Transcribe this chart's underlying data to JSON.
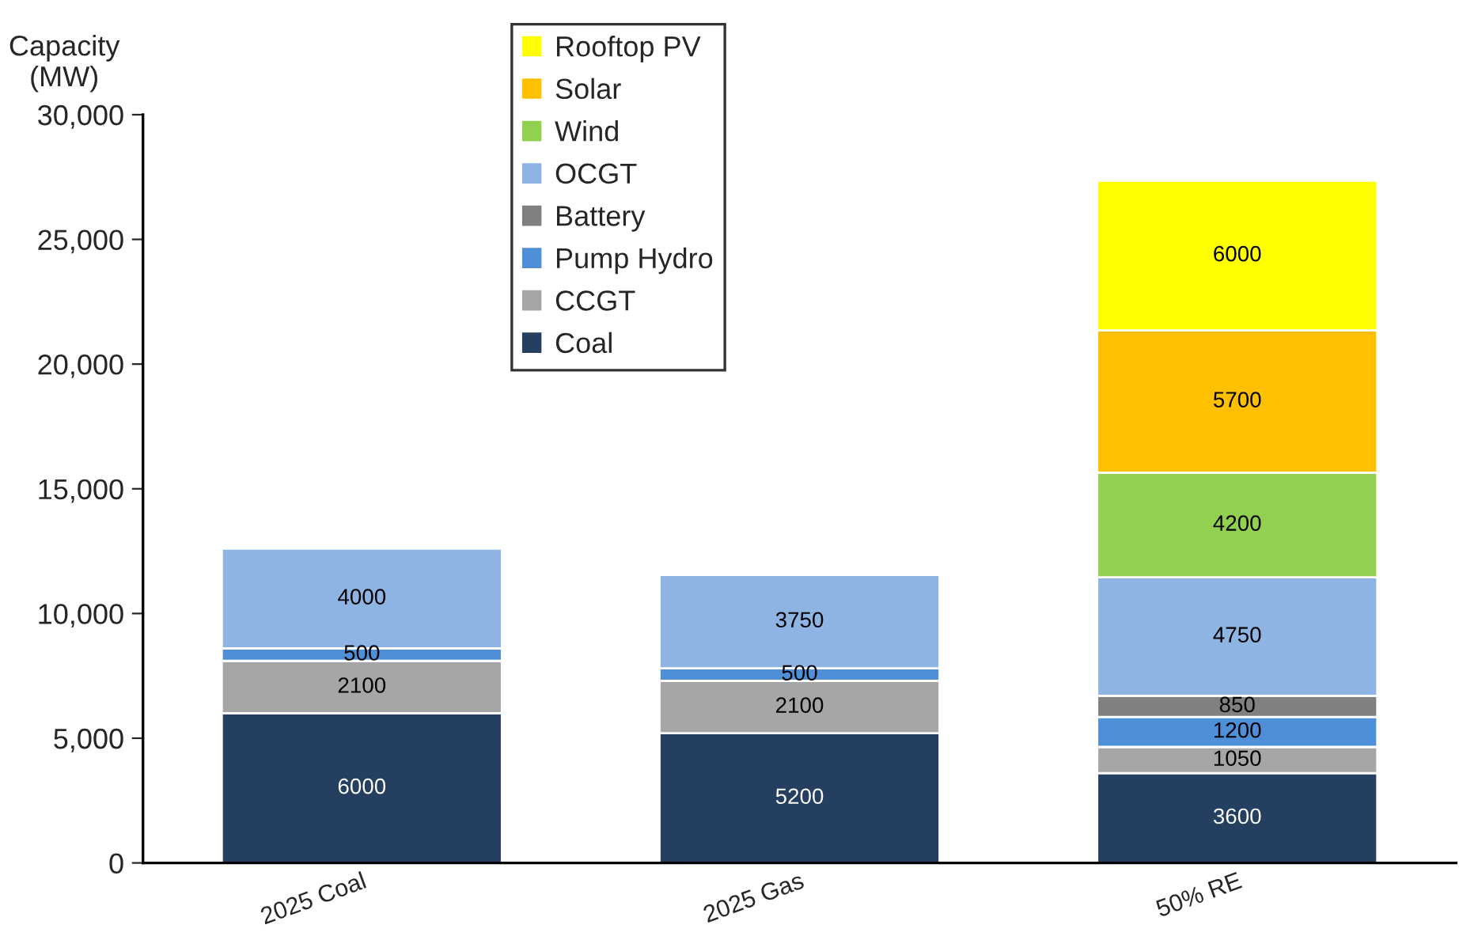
{
  "chart_data": {
    "type": "bar",
    "ylabel": "Capacity\n(MW)",
    "categories": [
      "2025 Coal",
      "2025 Gas",
      "50% RE"
    ],
    "stacked": true,
    "data_labels": true,
    "grid": false,
    "legend": "top left",
    "ylim": [
      0,
      30000
    ],
    "yticks": [
      {
        "value": 0,
        "label": "0"
      },
      {
        "value": 5000,
        "label": "5,000"
      },
      {
        "value": 10000,
        "label": "10,000"
      },
      {
        "value": 15000,
        "label": "15,000"
      },
      {
        "value": 20000,
        "label": "20,000"
      },
      {
        "value": 25000,
        "label": "25,000"
      },
      {
        "value": 30000,
        "label": "30,000"
      }
    ],
    "series": [
      {
        "name": "Coal",
        "color": "#243f60",
        "values": [
          6000,
          5200,
          3600
        ]
      },
      {
        "name": "CCGT",
        "color": "#a6a6a6",
        "values": [
          2100,
          2100,
          1050
        ]
      },
      {
        "name": "Pump Hydro",
        "color": "#4f8fd8",
        "values": [
          500,
          500,
          1200
        ]
      },
      {
        "name": "Battery",
        "color": "#808080",
        "values": [
          null,
          null,
          850
        ]
      },
      {
        "name": "OCGT",
        "color": "#8eb4e3",
        "values": [
          4000,
          3750,
          4750
        ]
      },
      {
        "name": "Wind",
        "color": "#92d050",
        "values": [
          null,
          null,
          4200
        ]
      },
      {
        "name": "Solar",
        "color": "#ffc000",
        "values": [
          null,
          null,
          5700
        ]
      },
      {
        "name": "Rooftop PV",
        "color": "#ffff00",
        "values": [
          null,
          null,
          6000
        ]
      }
    ]
  }
}
